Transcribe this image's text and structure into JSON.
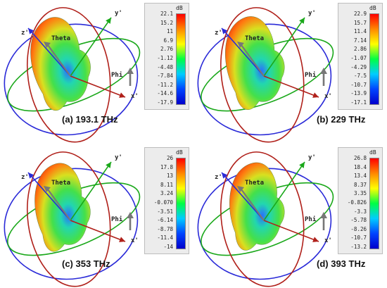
{
  "axis_labels": {
    "z": "z'",
    "y": "y'",
    "x": "x'",
    "theta": "Theta",
    "phi": "Phi"
  },
  "colorbar_colors": [
    "#ff0000",
    "#ff8800",
    "#ffff00",
    "#00ff44",
    "#00ccff",
    "#0044ff",
    "#0000cc"
  ],
  "panels": [
    {
      "caption": "(a) 193.1 THz",
      "unit": "dB",
      "ticks": [
        "22.1",
        "15.2",
        "11",
        "6.9",
        "2.76",
        "-1.12",
        "-4.48",
        "-7.84",
        "-11.2",
        "-14.6",
        "-17.9"
      ]
    },
    {
      "caption": "(b) 229 THz",
      "unit": "dB",
      "ticks": [
        "22.9",
        "15.7",
        "11.4",
        "7.14",
        "2.86",
        "-1.07",
        "-4.29",
        "-7.5",
        "-10.7",
        "-13.9",
        "-17.1"
      ]
    },
    {
      "caption": "(c) 353 THz",
      "unit": "dB",
      "ticks": [
        "26",
        "17.8",
        "13",
        "8.11",
        "3.24",
        "-0.070",
        "-3.51",
        "-6.14",
        "-8.78",
        "-11.4",
        "-14"
      ]
    },
    {
      "caption": "(d) 393 THz",
      "unit": "dB",
      "ticks": [
        "26.8",
        "18.4",
        "13.4",
        "8.37",
        "3.35",
        "-0.826",
        "-3.3",
        "-5.78",
        "-8.26",
        "-10.7",
        "-13.2"
      ]
    }
  ]
}
